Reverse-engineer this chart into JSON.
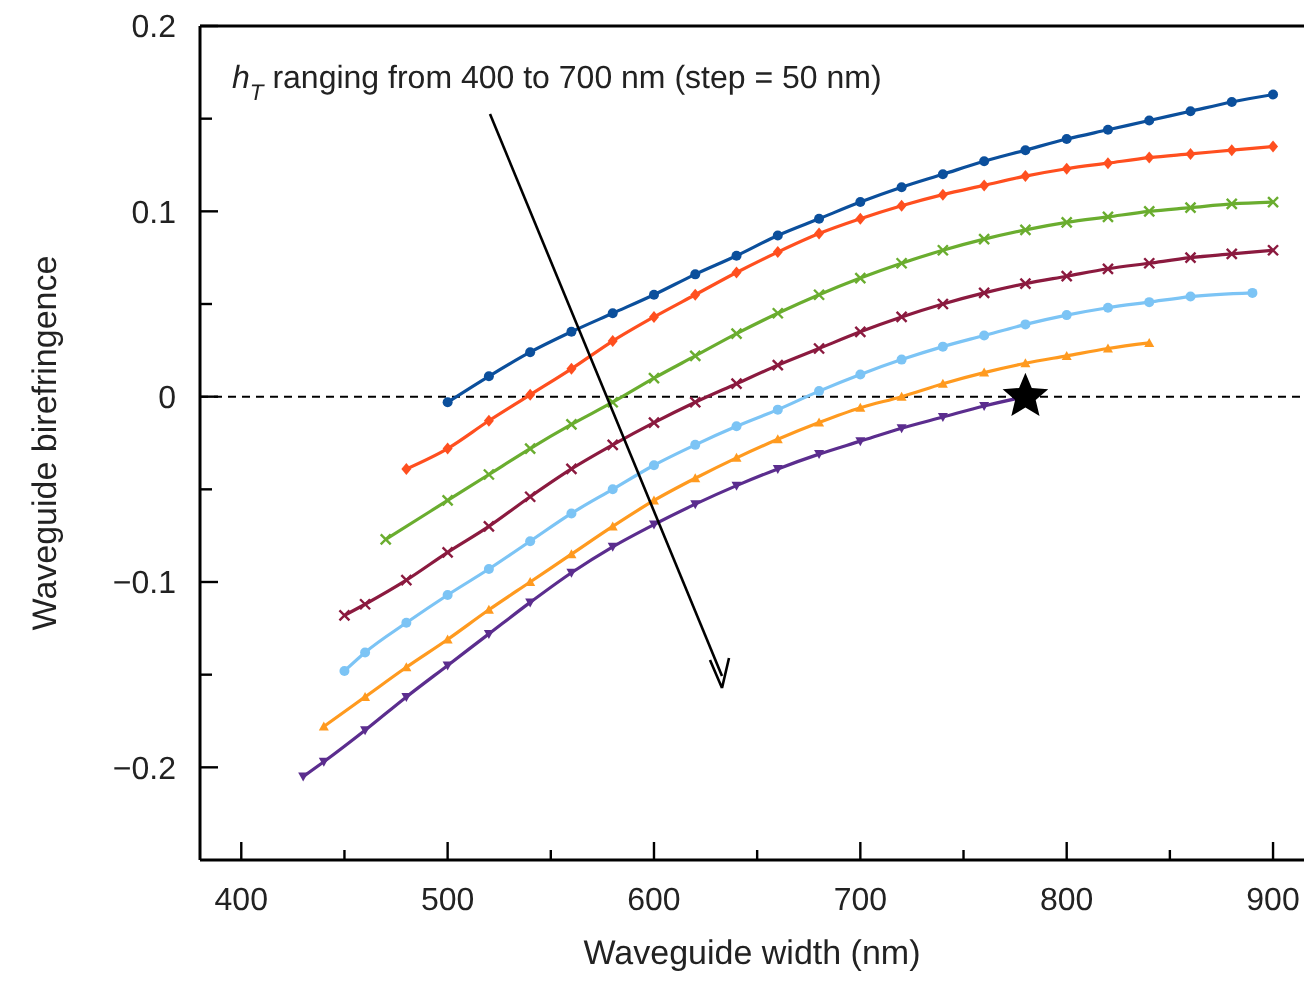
{
  "chart_data": {
    "type": "line",
    "xlabel": "Waveguide width (nm)",
    "ylabel": "Waveguide birefringence",
    "annotations": [
      "h$_{T}$ ranging from 400 to 700 nm (step = 50 nm)"
    ],
    "xlim": [
      380,
      915
    ],
    "ylim": [
      -0.25,
      0.2
    ],
    "xticks": [
      400,
      {
        "value": 450,
        "label": null
      },
      500,
      {
        "value": 550,
        "label": null
      },
      600,
      {
        "value": 650,
        "label": null
      },
      700,
      {
        "value": 750,
        "label": null
      },
      800,
      {
        "value": 850,
        "label": null
      },
      900
    ],
    "yticks": [
      {
        "value": -0.2,
        "label": "−0.2"
      },
      {
        "value": -0.15,
        "label": null
      },
      {
        "value": -0.1,
        "label": "−0.1"
      },
      {
        "value": -0.05,
        "label": null
      },
      0,
      {
        "value": 0.05,
        "label": null
      },
      0.1,
      {
        "value": 0.15,
        "label": null
      },
      0.2
    ],
    "grid": false,
    "line_style": "solid",
    "ref_lines": [
      {
        "axis": "y",
        "value": 0,
        "label": null,
        "color": "#000000",
        "line_style": "dashed"
      }
    ],
    "series": [
      {
        "color": "#0b4f9c",
        "marker": "circle",
        "x": [
          500,
          520,
          540,
          560,
          580,
          600,
          620,
          640,
          660,
          680,
          700,
          720,
          740,
          760,
          780,
          800,
          820,
          840,
          860,
          880,
          900
        ],
        "values": [
          -0.003,
          0.011,
          0.024,
          0.035,
          0.045,
          0.055,
          0.066,
          0.076,
          0.087,
          0.096,
          0.105,
          0.113,
          0.12,
          0.127,
          0.133,
          0.139,
          0.144,
          0.149,
          0.154,
          0.159,
          0.163
        ]
      },
      {
        "color": "#ff4f1f",
        "marker": "diamond",
        "x": [
          480,
          500,
          520,
          540,
          560,
          580,
          600,
          620,
          640,
          660,
          680,
          700,
          720,
          740,
          760,
          780,
          800,
          820,
          840,
          860,
          880,
          900
        ],
        "values": [
          -0.039,
          -0.028,
          -0.013,
          0.001,
          0.015,
          0.03,
          0.043,
          0.055,
          0.067,
          0.078,
          0.088,
          0.096,
          0.103,
          0.109,
          0.114,
          0.119,
          0.123,
          0.126,
          0.129,
          0.131,
          0.133,
          0.135
        ]
      },
      {
        "color": "#6aad2f",
        "marker": "cross",
        "x": [
          470,
          500,
          520,
          540,
          560,
          580,
          600,
          620,
          640,
          660,
          680,
          700,
          720,
          740,
          760,
          780,
          800,
          820,
          840,
          860,
          880,
          900
        ],
        "values": [
          -0.077,
          -0.056,
          -0.042,
          -0.028,
          -0.015,
          -0.003,
          0.01,
          0.022,
          0.034,
          0.045,
          0.055,
          0.064,
          0.072,
          0.079,
          0.085,
          0.09,
          0.094,
          0.097,
          0.1,
          0.102,
          0.104,
          0.105
        ]
      },
      {
        "color": "#8b1a3f",
        "marker": "cross",
        "x": [
          450,
          460,
          480,
          500,
          520,
          540,
          560,
          580,
          600,
          620,
          640,
          660,
          680,
          700,
          720,
          740,
          760,
          780,
          800,
          820,
          840,
          860,
          880,
          900
        ],
        "values": [
          -0.118,
          -0.112,
          -0.099,
          -0.084,
          -0.07,
          -0.054,
          -0.039,
          -0.026,
          -0.014,
          -0.003,
          0.007,
          0.017,
          0.026,
          0.035,
          0.043,
          0.05,
          0.056,
          0.061,
          0.065,
          0.069,
          0.072,
          0.075,
          0.077,
          0.079
        ]
      },
      {
        "color": "#7cc4f5",
        "marker": "circle",
        "x": [
          450,
          460,
          480,
          500,
          520,
          540,
          560,
          580,
          600,
          620,
          640,
          660,
          680,
          700,
          720,
          740,
          760,
          780,
          800,
          820,
          840,
          860,
          890
        ],
        "values": [
          -0.148,
          -0.138,
          -0.122,
          -0.107,
          -0.093,
          -0.078,
          -0.063,
          -0.05,
          -0.037,
          -0.026,
          -0.016,
          -0.007,
          0.003,
          0.012,
          0.02,
          0.027,
          0.033,
          0.039,
          0.044,
          0.048,
          0.051,
          0.054,
          0.056
        ]
      },
      {
        "color": "#ff9a1f",
        "marker": "triangle",
        "x": [
          440,
          460,
          480,
          500,
          520,
          540,
          560,
          580,
          600,
          620,
          640,
          660,
          680,
          700,
          720,
          740,
          760,
          780,
          800,
          820,
          840
        ],
        "values": [
          -0.178,
          -0.162,
          -0.146,
          -0.131,
          -0.115,
          -0.1,
          -0.085,
          -0.07,
          -0.056,
          -0.044,
          -0.033,
          -0.023,
          -0.014,
          -0.006,
          0,
          0.007,
          0.013,
          0.018,
          0.022,
          0.026,
          0.029
        ]
      },
      {
        "color": "#5b2d8e",
        "marker": "triangle-down",
        "x": [
          430,
          440,
          460,
          480,
          500,
          520,
          540,
          560,
          580,
          600,
          620,
          640,
          660,
          680,
          700,
          720,
          740,
          760,
          780
        ],
        "values": [
          -0.205,
          -0.197,
          -0.18,
          -0.162,
          -0.145,
          -0.128,
          -0.111,
          -0.095,
          -0.081,
          -0.069,
          -0.058,
          -0.048,
          -0.039,
          -0.031,
          -0.024,
          -0.017,
          -0.011,
          -0.005,
          0
        ]
      },
      {
        "type": "scatter",
        "color": "#000000",
        "marker": "star",
        "x": [
          780
        ],
        "values": [
          0
        ]
      }
    ]
  }
}
